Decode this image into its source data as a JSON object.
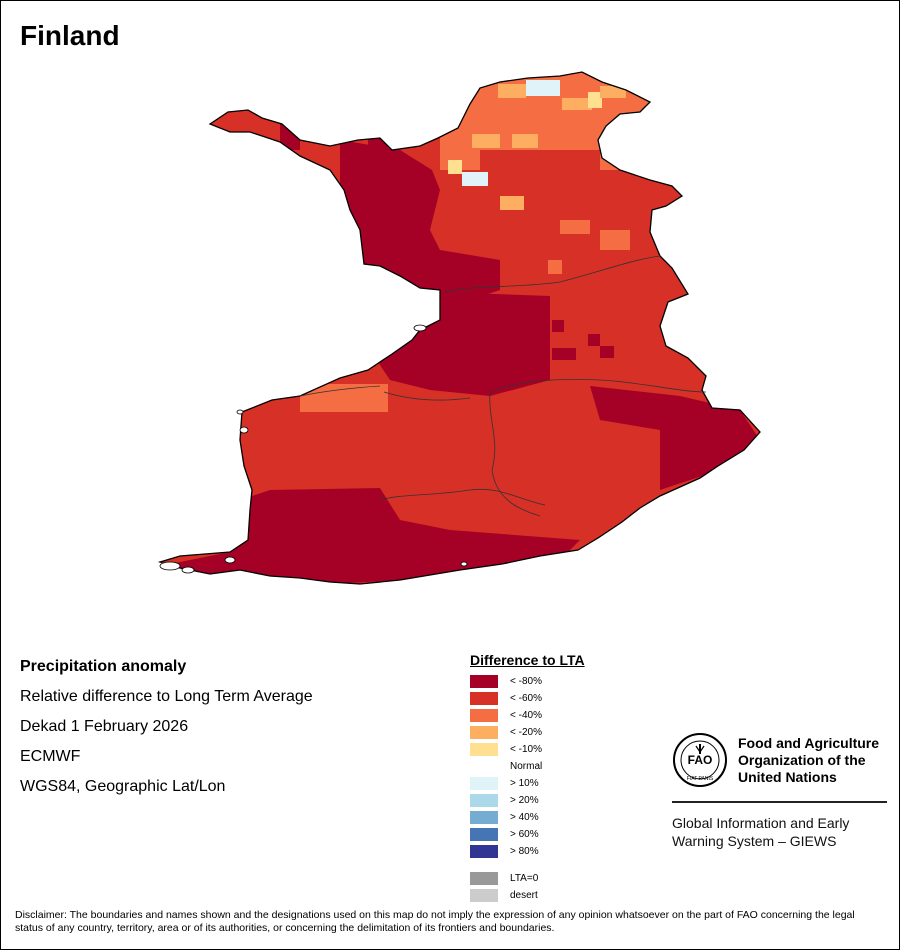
{
  "title": "Finland",
  "info": {
    "heading": "Precipitation anomaly",
    "line1": "Relative difference to Long Term Average",
    "line2": "Dekad 1 February 2026",
    "line3": "ECMWF",
    "line4": "WGS84, Geographic Lat/Lon"
  },
  "legend": {
    "title": "Difference to LTA",
    "items": [
      {
        "label": "< -80%",
        "color": "#a50026"
      },
      {
        "label": "< -60%",
        "color": "#d73027"
      },
      {
        "label": "< -40%",
        "color": "#f46d43"
      },
      {
        "label": "< -20%",
        "color": "#fdae61"
      },
      {
        "label": "< -10%",
        "color": "#fee090"
      },
      {
        "label": "Normal",
        "color": "#ffffff"
      },
      {
        "label": "> 10%",
        "color": "#e0f3f8"
      },
      {
        "label": "> 20%",
        "color": "#abd9e9"
      },
      {
        "label": "> 40%",
        "color": "#74add1"
      },
      {
        "label": "> 60%",
        "color": "#4575b4"
      },
      {
        "label": "> 80%",
        "color": "#313695"
      }
    ],
    "extra": [
      {
        "label": "LTA=0",
        "color": "#999999"
      },
      {
        "label": "desert",
        "color": "#cccccc"
      }
    ]
  },
  "fao": {
    "name": "Food and Agriculture Organization of the United Nations",
    "emblem_text": "FIAT PANIS",
    "giews": "Global Information and Early Warning System – GIEWS"
  },
  "disclaimer": "Disclaimer: The boundaries and names shown and the designations used on this map do not imply the expression of any opinion whatsoever on the part of FAO concerning the legal status of any country, territory, area or of its authorities, or concerning the delimitation of its frontiers and boundaries."
}
